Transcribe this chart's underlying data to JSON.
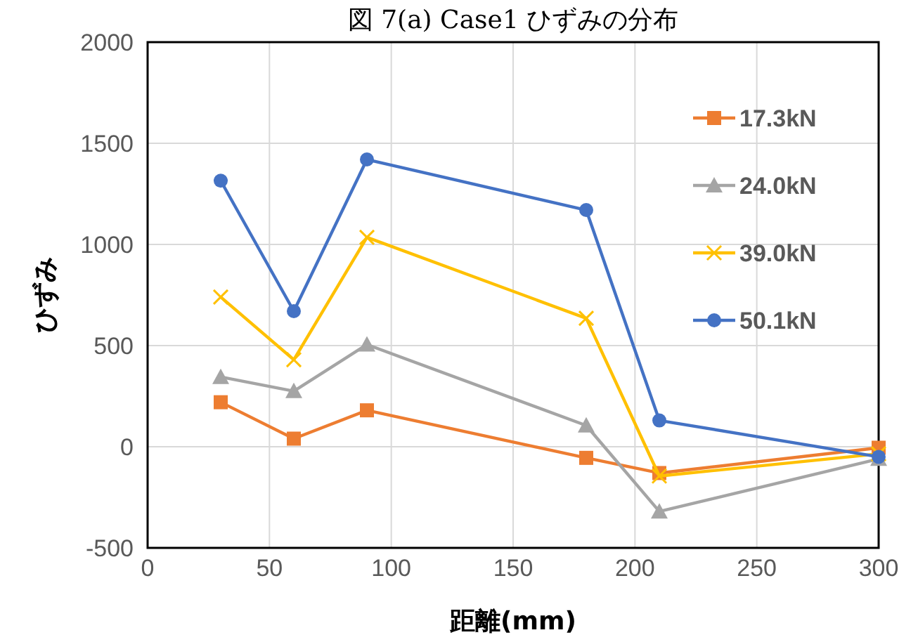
{
  "chart_data": {
    "type": "line",
    "title": "図 7(a) Case1 ひずみの分布",
    "xlabel": "距離(mm)",
    "ylabel": "ひずみ",
    "x": [
      30,
      60,
      90,
      180,
      210,
      300
    ],
    "series": [
      {
        "name": "17.3kN",
        "color": "#ed7d31",
        "marker": "square",
        "values": [
          220,
          40,
          180,
          -55,
          -130,
          -5
        ]
      },
      {
        "name": "24.0kN",
        "color": "#a5a5a5",
        "marker": "triangle",
        "values": [
          345,
          275,
          505,
          105,
          -320,
          -60
        ]
      },
      {
        "name": "39.0kN",
        "color": "#ffc000",
        "marker": "cross",
        "values": [
          740,
          430,
          1035,
          635,
          -145,
          -35
        ]
      },
      {
        "name": "50.1kN",
        "color": "#4472c4",
        "marker": "circle",
        "values": [
          1315,
          670,
          1420,
          1170,
          130,
          -50
        ]
      }
    ],
    "xlim": [
      0,
      300
    ],
    "xticks": [
      0,
      50,
      100,
      150,
      200,
      250,
      300
    ],
    "ylim": [
      -500,
      2000
    ],
    "yticks": [
      -500,
      0,
      500,
      1000,
      1500,
      2000
    ],
    "grid": true,
    "legend": "right",
    "line_style": "solid"
  }
}
